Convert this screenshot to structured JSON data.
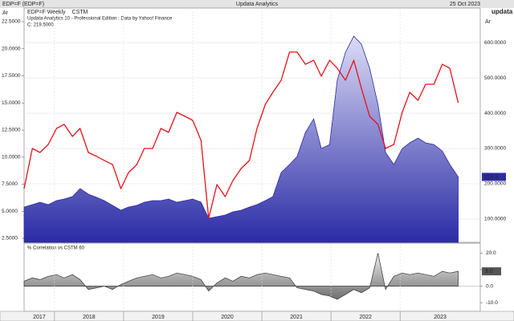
{
  "header": {
    "symbol": "EDP=F (EDP=F)",
    "title": "Updata Analytics",
    "date": "25 Oct 2023",
    "brand": "updata"
  },
  "chart_data": [
    {
      "type": "combo",
      "subtitle": "Updata Analytics 10 - Professional Edition : Data by Yahoo! Finance",
      "annotation": "C: 219.5000",
      "y_label": "Ar",
      "y2_label": "Ar",
      "x": [
        2017.56,
        2017.68,
        2017.79,
        2017.91,
        2018.03,
        2018.14,
        2018.26,
        2018.37,
        2018.49,
        2018.61,
        2018.72,
        2018.84,
        2018.96,
        2019.07,
        2019.19,
        2019.3,
        2019.42,
        2019.54,
        2019.65,
        2019.77,
        2019.89,
        2020.0,
        2020.12,
        2020.23,
        2020.35,
        2020.47,
        2020.58,
        2020.7,
        2020.82,
        2020.93,
        2021.05,
        2021.16,
        2021.28,
        2021.4,
        2021.51,
        2021.63,
        2021.75,
        2021.86,
        2021.98,
        2022.09,
        2022.21,
        2022.33,
        2022.44,
        2022.56,
        2022.68,
        2022.79,
        2022.91,
        2023.03,
        2023.14,
        2023.26,
        2023.37,
        2023.49,
        2023.61,
        2023.72,
        2023.84
      ],
      "xlim": [
        2017.56,
        2024.16
      ],
      "xticks": [
        2018,
        2019,
        2020,
        2021,
        2022,
        2023
      ],
      "ylim": [
        2.13,
        23.76
      ],
      "yticks": [
        {
          "value": 2.5,
          "label": "2.5000"
        },
        {
          "value": 5,
          "label": "5.0000"
        },
        {
          "value": 7.5,
          "label": "7.5000"
        },
        {
          "value": 10,
          "label": "10.0000"
        },
        {
          "value": 12.5,
          "label": "12.5000"
        },
        {
          "value": 15,
          "label": "15.0000"
        },
        {
          "value": 17.5,
          "label": "17.5000"
        },
        {
          "value": 20,
          "label": "20.0000"
        },
        {
          "value": 22.5,
          "label": "22.5000"
        }
      ],
      "y2lim": [
        34,
        698
      ],
      "y2ticks": [
        {
          "value": 100,
          "label": "100.0000"
        },
        {
          "value": 200,
          "label": "200.0000"
        },
        {
          "value": 300,
          "label": "300.0000"
        },
        {
          "value": 400,
          "label": "400.0000"
        },
        {
          "value": 500,
          "label": "500.0000"
        },
        {
          "value": 600,
          "label": "600.0000"
        }
      ],
      "grid": true,
      "series": [
        {
          "name": "EDP=F Weekly",
          "type": "area",
          "axis": "y2",
          "color": "#2b2ba6",
          "values": [
            134.0,
            140.8,
            147.7,
            140.8,
            152.2,
            156.7,
            163.6,
            186.3,
            170.4,
            161.3,
            152.2,
            138.6,
            124.9,
            134.0,
            138.6,
            147.7,
            152.2,
            152.2,
            156.7,
            147.7,
            152.2,
            156.7,
            147.7,
            102.2,
            106.7,
            111.3,
            120.4,
            124.9,
            134.0,
            140.8,
            152.2,
            163.6,
            231.8,
            254.5,
            277.2,
            345.4,
            384.0,
            299.9,
            311.3,
            493.1,
            572.7,
            618.2,
            595.4,
            527.2,
            425.0,
            288.6,
            254.5,
            299.9,
            315.9,
            329.5,
            315.9,
            311.3,
            293.1,
            254.5,
            219.5
          ]
        },
        {
          "name": "CSTM",
          "type": "line",
          "axis": "y",
          "color": "#e8101a",
          "values": [
            7.09,
            10.8,
            10.43,
            11.17,
            12.65,
            13.02,
            11.91,
            12.65,
            10.43,
            10.06,
            9.69,
            9.31,
            7.09,
            8.57,
            9.31,
            10.8,
            10.8,
            12.65,
            12.28,
            14.13,
            13.76,
            13.39,
            11.54,
            4.35,
            7.46,
            6.35,
            7.83,
            8.94,
            9.69,
            12.65,
            14.87,
            15.98,
            17.09,
            19.69,
            19.69,
            18.57,
            18.94,
            17.46,
            18.94,
            18.2,
            17.09,
            18.94,
            16.35,
            13.76,
            13.02,
            10.8,
            11.17,
            14.13,
            15.98,
            15.24,
            16.72,
            16.72,
            18.57,
            18.2,
            15.02
          ]
        }
      ]
    },
    {
      "type": "area",
      "title": "% Correlation vs CSTM 60",
      "x": [
        2017.56,
        2017.68,
        2017.79,
        2017.91,
        2018.03,
        2018.14,
        2018.26,
        2018.37,
        2018.49,
        2018.61,
        2018.72,
        2018.84,
        2018.96,
        2019.07,
        2019.19,
        2019.3,
        2019.42,
        2019.54,
        2019.65,
        2019.77,
        2019.89,
        2020.0,
        2020.12,
        2020.23,
        2020.35,
        2020.47,
        2020.58,
        2020.7,
        2020.82,
        2020.93,
        2021.05,
        2021.16,
        2021.28,
        2021.4,
        2021.51,
        2021.63,
        2021.75,
        2021.86,
        2021.98,
        2022.09,
        2022.21,
        2022.33,
        2022.44,
        2022.56,
        2022.68,
        2022.79,
        2022.91,
        2023.03,
        2023.14,
        2023.26,
        2023.37,
        2023.49,
        2023.61,
        2023.72,
        2023.84
      ],
      "xlim": [
        2017.56,
        2024.16
      ],
      "xticks": [
        {
          "value": 2017,
          "label": "2017"
        },
        {
          "value": 2018,
          "label": "2018"
        },
        {
          "value": 2019,
          "label": "2019"
        },
        {
          "value": 2020,
          "label": "2020"
        },
        {
          "value": 2021,
          "label": "2021"
        },
        {
          "value": 2022,
          "label": "2022"
        },
        {
          "value": 2023,
          "label": "2023"
        }
      ],
      "ylim": [
        -15.3,
        26.1
      ],
      "yticks": [
        {
          "value": -10,
          "label": "-10.0"
        },
        {
          "value": 0,
          "label": "0.0"
        },
        {
          "value": 10,
          "label": "10.0"
        },
        {
          "value": 20,
          "label": "20.0"
        }
      ],
      "color": "#6e6e6e",
      "values": [
        3,
        5,
        4,
        6,
        7,
        5,
        7,
        4,
        -2,
        -1,
        0,
        -2,
        1,
        3,
        5,
        6,
        7,
        5,
        6,
        8,
        7,
        6,
        4,
        -3,
        2,
        5,
        3,
        6,
        5,
        7,
        8,
        7,
        6,
        5,
        -1,
        -2,
        -3,
        -5,
        -6,
        -8,
        -5,
        -2,
        -4,
        -1,
        20,
        -2,
        6,
        8,
        7,
        8,
        7,
        6,
        9,
        8,
        9
      ],
      "value_labels": [
        null,
        null,
        null,
        null,
        null,
        null,
        null,
        null,
        null,
        null,
        null,
        null,
        null,
        null,
        null,
        null,
        null,
        null,
        null,
        null,
        null,
        null,
        null,
        null,
        null,
        null,
        null,
        null,
        null,
        null,
        null,
        null,
        null,
        null,
        null,
        null,
        null,
        null,
        null,
        null,
        null,
        null,
        null,
        null,
        null,
        null,
        null,
        null,
        null,
        null,
        null,
        null,
        null,
        null,
        "9.0"
      ]
    }
  ]
}
